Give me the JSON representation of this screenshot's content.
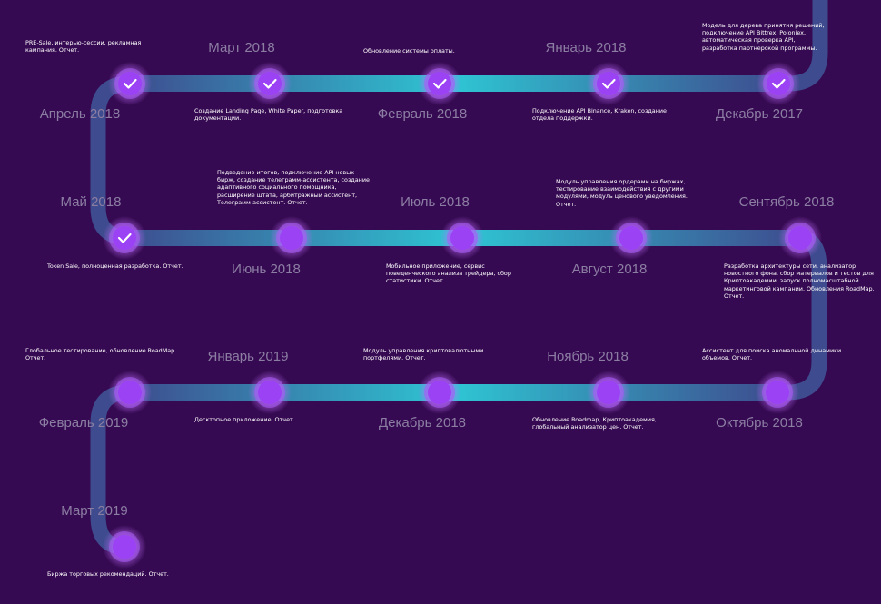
{
  "colors": {
    "background": "#360a52",
    "track_dark": "#3e4b8e",
    "track_light": "#2ec6d4",
    "node_fill": "#9b42f5",
    "node_glow": "#c06cff",
    "date_text": "#8c7ea3",
    "desc_text": "#ffffff"
  },
  "milestones": [
    {
      "date": "Декабрь 2017",
      "text": "Модель для дерева принятия решений, подключение API Bittrex, Poloniex, автоматическая проверка API, разработка партнерской программы.",
      "done": true
    },
    {
      "date": "Январь 2018",
      "text": "Подключение API Binance, Kraken, создание отдела поддержки.",
      "done": true
    },
    {
      "date": "Февраль 2018",
      "text": "Обновление системы оплаты.",
      "done": true
    },
    {
      "date": "Март 2018",
      "text": "Создание Landing Page, White Paper, подготовка документации.",
      "done": true
    },
    {
      "date": "Апрель 2018",
      "text": "PRE-Sale, интерью-сессии, рекламная кампания. Отчет.",
      "done": true
    },
    {
      "date": "Май 2018",
      "text": "Token Sale, полноценная разработка. Отчет.",
      "done": true
    },
    {
      "date": "Июнь 2018",
      "text": "Подведение итогов, подключение API новых бирж, создание телеграмм-ассистента, создание адаптивного социального помощника, расширение штата, арбитражный ассистент, Телеграмм-ассистент. Отчет.",
      "done": false
    },
    {
      "date": "Июль 2018",
      "text": "Мобильное приложение, сервис поведенческого анализа трейдера, сбор статистики. Отчет.",
      "done": false
    },
    {
      "date": "Август 2018",
      "text": "Модуль управления ордерами на биржах, тестирование взаимодействия с другими модулями, модуль ценового уведомления. Отчет.",
      "done": false
    },
    {
      "date": "Сентябрь 2018",
      "text": "Разработка архитектуры сети, анализатор новостного фона, сбор материалов и тестов для Криптоакадемии, запуск полномасштабной маркетинговой кампании. Обновления RoadMap. Отчет.",
      "done": false
    },
    {
      "date": "Октябрь 2018",
      "text": "Ассистент для поиска аномальной динамики объемов. Отчет.",
      "done": false
    },
    {
      "date": "Ноябрь 2018",
      "text": "Обновление Roadmap, Криптоакадемия, глобальный анализатор цен. Отчет.",
      "done": false
    },
    {
      "date": "Декабрь 2018",
      "text": "Модуль управления криптовалютными портфелями. Отчет.",
      "done": false
    },
    {
      "date": "Январь 2019",
      "text": "Десктопное приложение. Отчет.",
      "done": false
    },
    {
      "date": "Февраль 2019",
      "text": "Глобальное тестирование, обновление RoadMap. Отчет.",
      "done": false
    },
    {
      "date": "Март 2019",
      "text": "Биржа торговых рекомендаций. Отчет.",
      "done": false
    }
  ]
}
